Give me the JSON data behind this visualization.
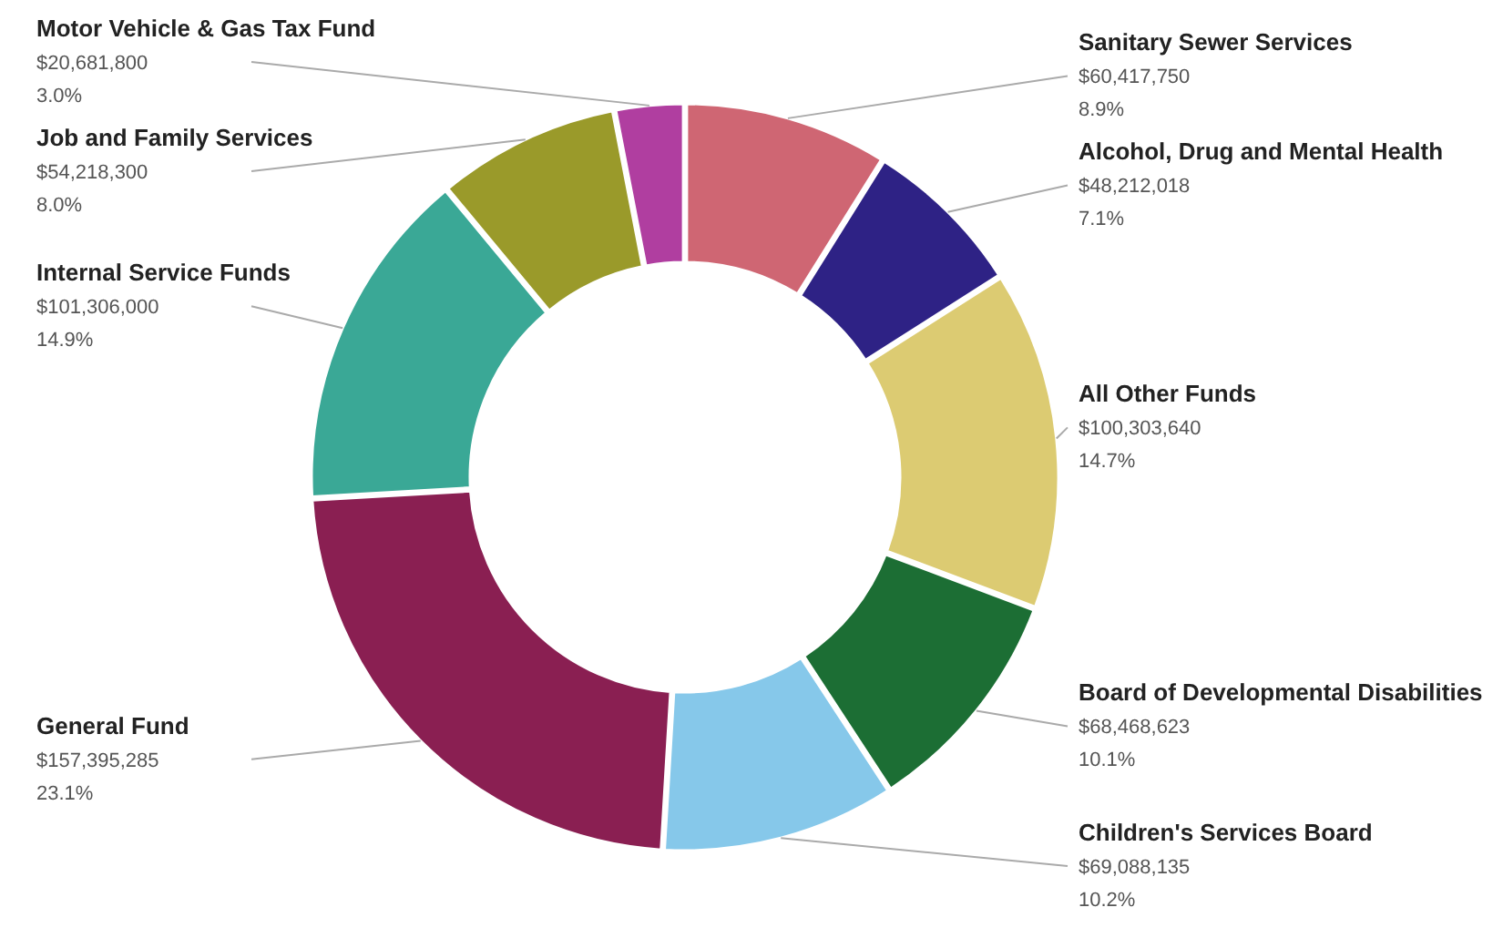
{
  "chart_data": {
    "type": "donut",
    "categories": [
      "Sanitary Sewer Services",
      "Alcohol, Drug and Mental Health",
      "All Other Funds",
      "Board of Developmental Disabilities",
      "Children's Services Board",
      "General Fund",
      "Internal Service Funds",
      "Job and Family Services",
      "Motor Vehicle & Gas Tax Fund"
    ],
    "values": [
      60417750,
      48212018,
      100303640,
      68468623,
      69088135,
      157395285,
      101306000,
      54218300,
      20681800
    ],
    "value_labels": [
      "$60,417,750\n8.9%",
      "$48,212,018\n7.1%",
      "$100,303,640\n14.7%",
      "$68,468,623\n10.1%",
      "$69,088,135\n10.2%",
      "$157,395,285\n23.1%",
      "$101,306,000\n14.9%",
      "$54,218,300\n8.0%",
      "$20,681,800\n3.0%"
    ],
    "colors": [
      "#cf6673",
      "#2e2285",
      "#dccb72",
      "#1c6e34",
      "#86c8ea",
      "#8a1f52",
      "#3aa896",
      "#9a9a2a",
      "#b03ea0"
    ]
  }
}
